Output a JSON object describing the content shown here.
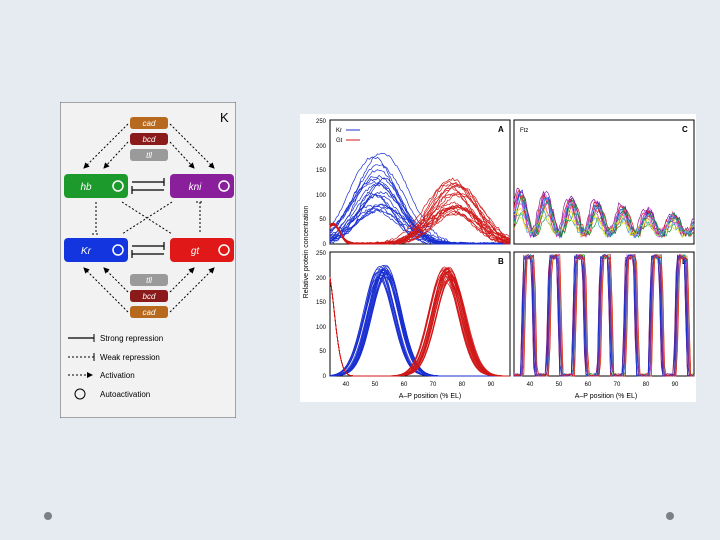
{
  "network": {
    "panel_letter": "K",
    "top_stack": [
      "cad",
      "bcd",
      "tll"
    ],
    "bottom_stack": [
      "tll",
      "bcd",
      "cad"
    ],
    "genes": {
      "hb": "hb",
      "kni": "kni",
      "kr": "Kr",
      "gt": "gt"
    },
    "colors": {
      "hb": "#1c9a2c",
      "kni": "#8a1f9c",
      "kr": "#1235e0",
      "gt": "#e01818",
      "cad": "#b7691e",
      "bcd": "#8b1a1a",
      "tll": "#9a9a9a"
    },
    "legend": [
      "Strong repression",
      "Weak repression",
      "Activation",
      "Autoactivation"
    ]
  },
  "plots": {
    "ylabel": "Relative protein concentration",
    "xlabel": "A–P position (% EL)",
    "yticks": [
      "250",
      "200",
      "150",
      "100",
      "50",
      "0"
    ],
    "xticks": [
      "40",
      "50",
      "60",
      "70",
      "80",
      "90"
    ],
    "panels": [
      "A",
      "B",
      "C",
      "D"
    ],
    "legend_a": [
      "Kr",
      "Gt"
    ],
    "legend_c": "Ftz"
  },
  "chart_data": [
    {
      "type": "line",
      "panel": "A",
      "x_range": [
        35,
        90
      ],
      "ylim": [
        0,
        250
      ],
      "series": [
        {
          "name": "Kr",
          "color": "#1a2fd0",
          "peak_x": 50,
          "peak_y_range": [
            60,
            185
          ],
          "count": 20
        },
        {
          "name": "Gt",
          "color": "#d01818",
          "peak_x": 73,
          "peak_y_range": [
            60,
            135
          ],
          "count": 20
        }
      ]
    },
    {
      "type": "line",
      "panel": "B",
      "x_range": [
        35,
        90
      ],
      "ylim": [
        0,
        250
      ],
      "series": [
        {
          "color": "#1a2fd0",
          "peak_x": 51,
          "peak_y": 225
        },
        {
          "color": "#d01818",
          "peak_x": 71,
          "peak_y": 220
        }
      ]
    },
    {
      "type": "line",
      "panel": "C",
      "x_range": [
        35,
        90
      ],
      "ylim": [
        0,
        250
      ],
      "series": [
        {
          "name": "Ftz",
          "stripes": 7,
          "peak_y_range": [
            60,
            120
          ]
        }
      ]
    },
    {
      "type": "line",
      "panel": "D",
      "x_range": [
        35,
        90
      ],
      "ylim": [
        0,
        250
      ],
      "series": [
        {
          "stripes": 7,
          "peak_y": 240
        }
      ]
    }
  ]
}
